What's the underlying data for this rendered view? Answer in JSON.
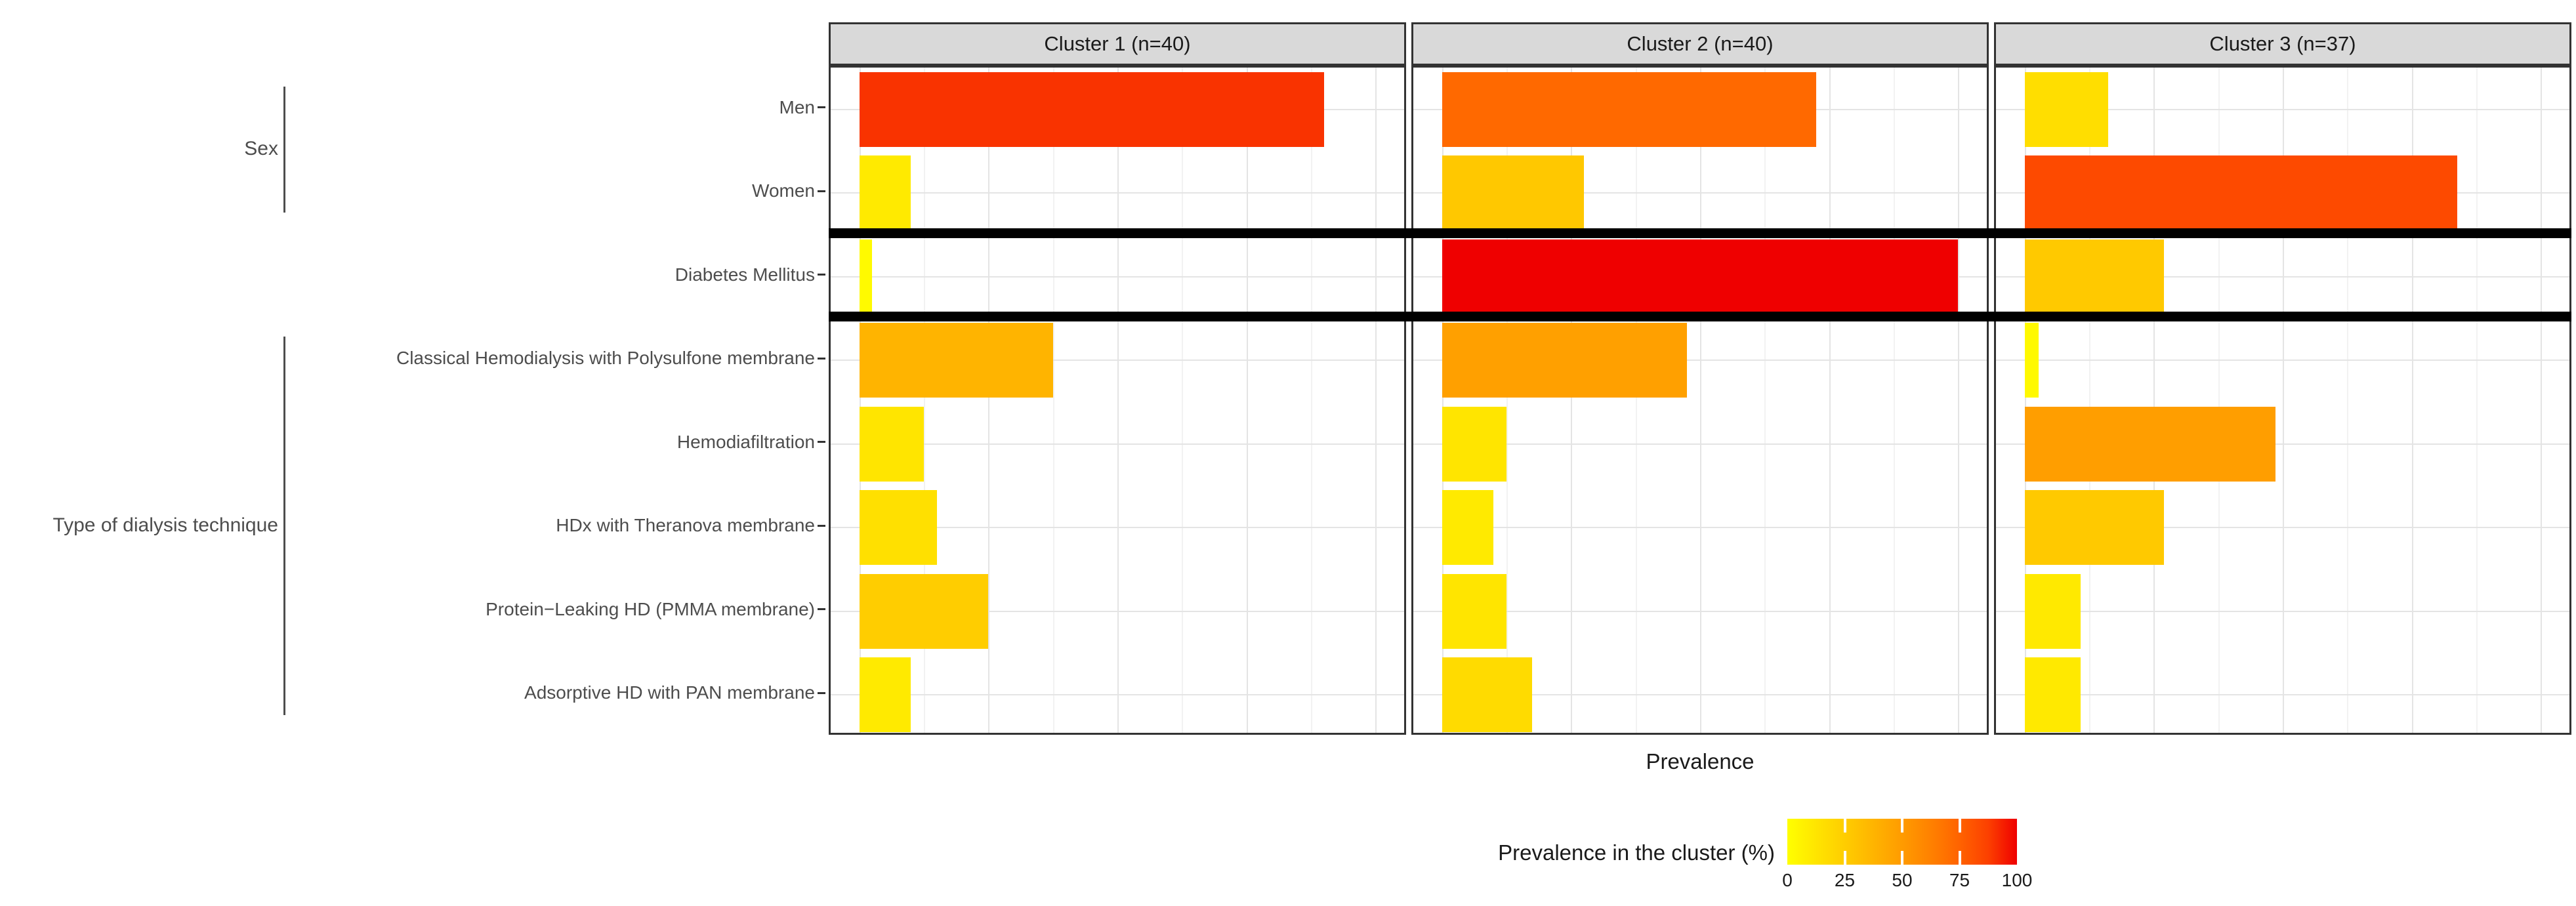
{
  "chart_data": {
    "type": "bar",
    "orientation": "horizontal",
    "xlabel": "Prevalence",
    "x_axis": {
      "min": 0,
      "max": 100,
      "major_ticks": [
        0,
        25,
        50,
        75,
        100
      ],
      "minor_step": 12.5,
      "tick_labels_shown": false
    },
    "categories": [
      "Men",
      "Women",
      "Diabetes Mellitus",
      "Classical Hemodialysis with Polysulfone membrane",
      "Hemodiafiltration",
      "HDx with Theranova membrane",
      "Protein−Leaking HD (PMMA membrane)",
      "Adsorptive HD with PAN membrane"
    ],
    "category_groups": [
      {
        "label": "Sex",
        "rows": [
          0,
          1
        ]
      },
      {
        "label": "Type of dialysis technique",
        "rows": [
          3,
          4,
          5,
          6,
          7
        ]
      }
    ],
    "separators_after_category_index": [
      2,
      3
    ],
    "facets": [
      {
        "label": "Cluster 1 (n=40)",
        "n": 40,
        "values": [
          90,
          10,
          2.5,
          37.5,
          12.5,
          15,
          25,
          10
        ]
      },
      {
        "label": "Cluster 2 (n=40)",
        "n": 40,
        "values": [
          72.5,
          27.5,
          100,
          47.5,
          12.5,
          10,
          12.5,
          17.5
        ]
      },
      {
        "label": "Cluster 3 (n=37)",
        "n": 37,
        "values": [
          16.2,
          83.8,
          27,
          2.7,
          48.6,
          27,
          10.8,
          10.8
        ]
      }
    ],
    "legend": {
      "title": "Prevalence in the cluster (%)",
      "tick_labels": [
        "0",
        "25",
        "50",
        "75",
        "100"
      ],
      "tick_values": [
        0,
        25,
        50,
        75,
        100
      ],
      "gradient_stops": [
        {
          "value": 0,
          "color": "#FFFF00"
        },
        {
          "value": 12.5,
          "color": "#FFE500"
        },
        {
          "value": 25,
          "color": "#FFCD00"
        },
        {
          "value": 37.5,
          "color": "#FFB400"
        },
        {
          "value": 50,
          "color": "#FF9B00"
        },
        {
          "value": 62.5,
          "color": "#FF8100"
        },
        {
          "value": 75,
          "color": "#FF6300"
        },
        {
          "value": 87.5,
          "color": "#FC4000"
        },
        {
          "value": 100,
          "color": "#EF0000"
        }
      ]
    },
    "colors": {
      "strip_background": "#D9D9D9",
      "panel_border": "#333333",
      "grid_major": "#E4E4E4",
      "grid_minor": "#F2F2F2",
      "separator": "#000000",
      "axis_text": "#4D4D4D",
      "text": "#1A1A1A"
    }
  }
}
